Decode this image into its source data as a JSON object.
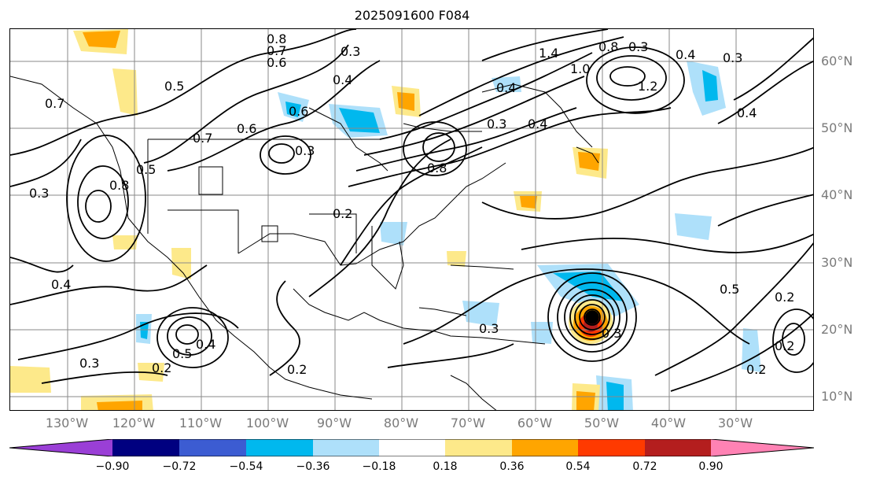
{
  "title": "2025091600 F084",
  "lat_labels": [
    "60°N",
    "50°N",
    "40°N",
    "30°N",
    "20°N",
    "10°N"
  ],
  "lon_labels": [
    "130°W",
    "120°W",
    "110°W",
    "100°W",
    "90°W",
    "80°W",
    "70°W",
    "60°W",
    "50°W",
    "40°W",
    "30°W"
  ],
  "colorbar": {
    "ticks": [
      "−0.90",
      "−0.72",
      "−0.54",
      "−0.36",
      "−0.18",
      "0.18",
      "0.36",
      "0.54",
      "0.72",
      "0.90"
    ],
    "colors": [
      "#9a3fd6",
      "#000080",
      "#3c5cd2",
      "#00b8ee",
      "#aee0fa",
      "#ffffff",
      "#fde98a",
      "#ffa500",
      "#ff3a00",
      "#b41e1e",
      "#ff82b4"
    ]
  },
  "contour_labels": [
    "0.8",
    "0.7",
    "0.6",
    "0.3",
    "0.4",
    "1.4",
    "1.0",
    "0.8",
    "0.3",
    "0.4",
    "0.3",
    "1.2",
    "0.5",
    "0.6",
    "0.7",
    "0.4",
    "0.6",
    "0.3",
    "0.5",
    "0.3",
    "0.8",
    "0.7",
    "0.4",
    "0.8",
    "0.3",
    "0.2",
    "0.4",
    "0.5",
    "0.4",
    "0.3",
    "0.2",
    "0.2",
    "0.3",
    "0.5",
    "0.2",
    "0.2",
    "0.2",
    "0.4",
    "0.3"
  ]
}
